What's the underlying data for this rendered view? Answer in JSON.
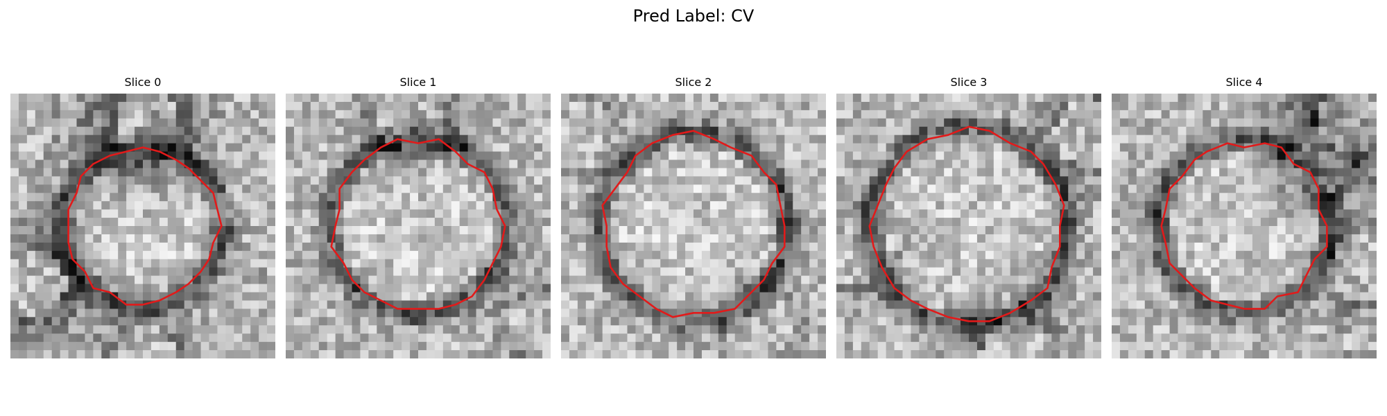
{
  "figure": {
    "title": "Pred Label: CV"
  },
  "panels": [
    {
      "title": "Slice 0",
      "contour_color": "#e21a1a",
      "contour_radius": 0.29
    },
    {
      "title": "Slice 1",
      "contour_color": "#e21a1a",
      "contour_radius": 0.32
    },
    {
      "title": "Slice 2",
      "contour_color": "#e21a1a",
      "contour_radius": 0.34
    },
    {
      "title": "Slice 3",
      "contour_color": "#e21a1a",
      "contour_radius": 0.36
    },
    {
      "title": "Slice 4",
      "contour_color": "#e21a1a",
      "contour_radius": 0.31
    }
  ]
}
